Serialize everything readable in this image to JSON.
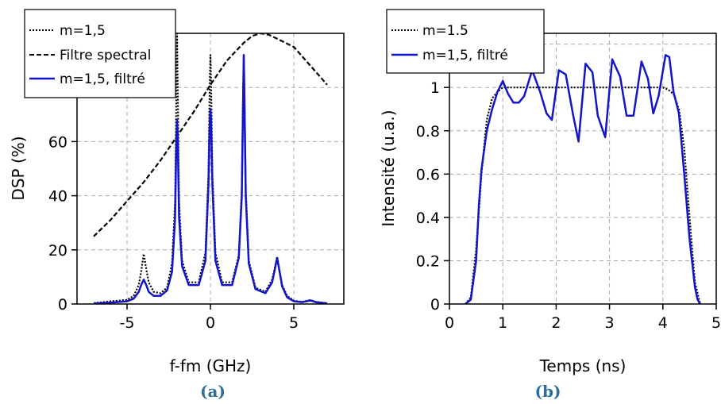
{
  "chart_data": [
    {
      "type": "line",
      "xlabel": "f-fm (GHz)",
      "ylabel": "DSP (%)",
      "caption": "(a)",
      "xlim": [
        -8,
        8
      ],
      "ylim": [
        0,
        100
      ],
      "xticks": [
        -5,
        0,
        5
      ],
      "yticks": [
        0,
        20,
        40,
        60
      ],
      "grid": true,
      "legend_position": "top-left",
      "series": [
        {
          "name": "m=1,5",
          "color": "#000000",
          "style": "dotted",
          "x": [
            -7.0,
            -6.0,
            -5.0,
            -4.6,
            -4.3,
            -4.15,
            -4.0,
            -3.85,
            -3.7,
            -3.4,
            -3.0,
            -2.6,
            -2.3,
            -2.12,
            -2.04,
            -2.0,
            -1.96,
            -1.88,
            -1.7,
            -1.3,
            -0.7,
            -0.3,
            -0.12,
            -0.04,
            0.0,
            0.04,
            0.12,
            0.3,
            0.7,
            1.3,
            1.7,
            1.88,
            1.96,
            2.0,
            2.04,
            2.12,
            2.3,
            2.7,
            3.3,
            3.7,
            3.85,
            4.0,
            4.15,
            4.3,
            4.6,
            5.0,
            5.5,
            6.0,
            6.3,
            7.0
          ],
          "y": [
            0.3,
            1.0,
            1.5,
            3.0,
            7.0,
            12.0,
            18.5,
            13.0,
            8.0,
            4.5,
            4.0,
            6.0,
            15.0,
            38.0,
            80.0,
            100.0,
            80.0,
            38.0,
            16.0,
            8.0,
            8.0,
            19.0,
            48.0,
            82.0,
            92.0,
            82.0,
            48.0,
            19.0,
            8.0,
            8.0,
            18.0,
            42.0,
            80.0,
            92.0,
            80.0,
            42.0,
            16.0,
            6.0,
            4.5,
            9.0,
            13.0,
            17.5,
            12.0,
            7.0,
            3.0,
            1.2,
            0.8,
            1.5,
            0.8,
            0.3
          ]
        },
        {
          "name": "Filtre spectral",
          "color": "#000000",
          "style": "dashed",
          "x": [
            -7.0,
            -6.0,
            -5.0,
            -4.0,
            -3.0,
            -2.0,
            -1.0,
            0.0,
            1.0,
            2.0,
            2.5,
            3.0,
            3.5,
            4.0,
            5.0,
            6.0,
            7.0
          ],
          "y": [
            25.0,
            31.0,
            38.0,
            45.0,
            53.0,
            62.0,
            71.0,
            81.0,
            90.0,
            96.5,
            99.0,
            100.0,
            99.5,
            98.0,
            95.0,
            88.0,
            81.0
          ]
        },
        {
          "name": "m=1,5, filtré",
          "color": "#1414c8",
          "style": "solid",
          "x": [
            -7.0,
            -6.0,
            -5.0,
            -4.6,
            -4.3,
            -4.15,
            -4.0,
            -3.85,
            -3.7,
            -3.4,
            -3.0,
            -2.6,
            -2.3,
            -2.12,
            -2.04,
            -2.0,
            -1.96,
            -1.88,
            -1.7,
            -1.3,
            -0.7,
            -0.3,
            -0.12,
            -0.04,
            0.0,
            0.04,
            0.12,
            0.3,
            0.7,
            1.3,
            1.7,
            1.88,
            1.96,
            2.0,
            2.04,
            2.12,
            2.3,
            2.7,
            3.3,
            3.7,
            3.85,
            4.0,
            4.15,
            4.3,
            4.6,
            5.0,
            5.5,
            6.0,
            6.3,
            7.0
          ],
          "y": [
            0.2,
            0.5,
            1.0,
            2.0,
            4.5,
            7.0,
            9.0,
            7.0,
            4.5,
            3.0,
            3.0,
            5.0,
            12.0,
            32.0,
            62.0,
            68.0,
            62.0,
            32.0,
            14.0,
            7.0,
            7.0,
            16.0,
            44.0,
            68.0,
            72.0,
            68.0,
            44.0,
            16.0,
            7.0,
            7.0,
            17.0,
            40.0,
            76.0,
            92.0,
            76.0,
            40.0,
            15.0,
            5.5,
            4.0,
            8.0,
            12.5,
            17.0,
            12.0,
            6.5,
            2.5,
            1.0,
            0.7,
            1.3,
            0.7,
            0.2
          ]
        }
      ]
    },
    {
      "type": "line",
      "xlabel": "Temps (ns)",
      "ylabel": "Intensité (u.a.)",
      "caption": "(b)",
      "xlim": [
        0,
        5
      ],
      "ylim": [
        0,
        1.25
      ],
      "xticks": [
        0,
        1,
        2,
        3,
        4,
        5
      ],
      "xtick_labels": [
        "0",
        "1",
        "2",
        "3",
        "4",
        "5"
      ],
      "yticks": [
        0,
        0.2,
        0.4,
        0.6,
        0.8,
        1
      ],
      "ytick_labels": [
        "0",
        "0.2",
        "0.4",
        "0.6",
        "0.8",
        "1"
      ],
      "grid": true,
      "legend_position": "top-left",
      "series": [
        {
          "name": "m=1.5",
          "color": "#000000",
          "style": "dotted",
          "x": [
            0.3,
            0.4,
            0.5,
            0.6,
            0.7,
            0.8,
            0.9,
            1.0,
            1.1,
            1.5,
            2.0,
            2.5,
            3.0,
            3.5,
            3.9,
            4.0,
            4.1,
            4.2,
            4.3,
            4.4,
            4.5,
            4.6,
            4.7
          ],
          "y": [
            0.0,
            0.03,
            0.25,
            0.6,
            0.85,
            0.95,
            0.98,
            1.0,
            1.0,
            1.0,
            1.0,
            1.0,
            1.0,
            1.0,
            1.0,
            1.0,
            0.99,
            0.97,
            0.9,
            0.72,
            0.4,
            0.1,
            0.0
          ]
        },
        {
          "name": "m=1,5, filtré",
          "color": "#1414c8",
          "style": "solid",
          "x": [
            0.3,
            0.4,
            0.5,
            0.55,
            0.6,
            0.7,
            0.8,
            0.9,
            1.0,
            1.1,
            1.2,
            1.3,
            1.4,
            1.55,
            1.7,
            1.82,
            1.92,
            2.05,
            2.18,
            2.32,
            2.42,
            2.55,
            2.68,
            2.78,
            2.92,
            3.05,
            3.2,
            3.32,
            3.45,
            3.6,
            3.72,
            3.82,
            3.92,
            4.05,
            4.12,
            4.2,
            4.3,
            4.4,
            4.5,
            4.6,
            4.65,
            4.7
          ],
          "y": [
            0.0,
            0.02,
            0.2,
            0.45,
            0.62,
            0.8,
            0.9,
            0.98,
            1.03,
            0.97,
            0.93,
            0.93,
            0.96,
            1.08,
            0.98,
            0.88,
            0.85,
            1.08,
            1.06,
            0.87,
            0.75,
            1.11,
            1.07,
            0.87,
            0.77,
            1.13,
            1.05,
            0.87,
            0.87,
            1.12,
            1.04,
            0.88,
            0.96,
            1.15,
            1.14,
            0.98,
            0.88,
            0.6,
            0.3,
            0.08,
            0.02,
            0.0
          ]
        }
      ]
    }
  ]
}
